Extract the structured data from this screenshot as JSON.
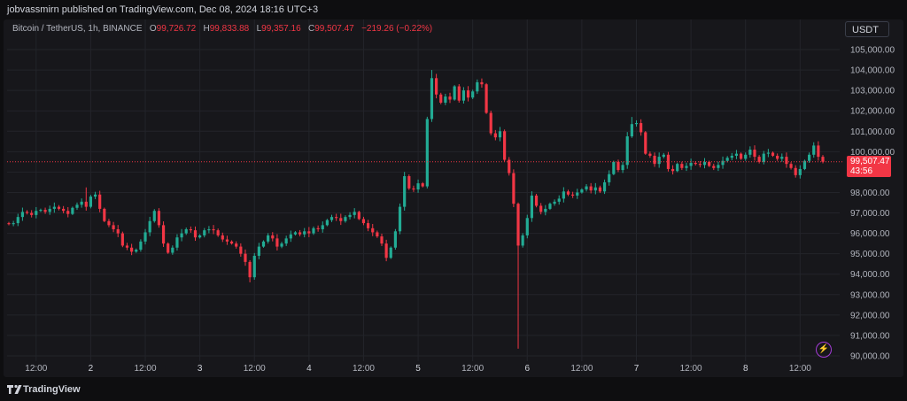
{
  "header": {
    "publisher_line": "jobvassmirn published on TradingView.com, Dec 08, 2024 18:16 UTC+3"
  },
  "legend": {
    "symbol": "Bitcoin / TetherUS, 1h, BINANCE",
    "open_label": "O",
    "open_value": "99,726.72",
    "high_label": "H",
    "high_value": "99,833.88",
    "low_label": "L",
    "low_value": "99,357.16",
    "close_label": "C",
    "close_value": "99,507.47",
    "change": "−219.26 (−0.22%)"
  },
  "currency": "USDT",
  "last_price": {
    "price": "99,507.47",
    "countdown": "43:56"
  },
  "footer": {
    "brand": "TradingView"
  },
  "colors": {
    "up": "#22ab94",
    "down": "#f23645",
    "background": "#17171b",
    "price_line": "#f23645"
  },
  "icons": {
    "alert": "lightning-bolt-icon",
    "logo": "tradingview-logo-icon"
  },
  "chart_data": {
    "type": "candlestick",
    "title": "Bitcoin / TetherUS, 1h, BINANCE",
    "interval": "1h",
    "y_axis": {
      "min": 90000,
      "max": 105000,
      "position": "right",
      "ticks": [
        "105,000.00",
        "104,000.00",
        "103,000.00",
        "102,000.00",
        "101,000.00",
        "100,000.00",
        "99,000.00",
        "98,000.00",
        "97,000.00",
        "96,000.00",
        "95,000.00",
        "94,000.00",
        "93,000.00",
        "92,000.00",
        "91,000.00",
        "90,000.00"
      ]
    },
    "x_axis": {
      "ticks": [
        {
          "label": "12:00",
          "bar": 6,
          "day": false
        },
        {
          "label": "2",
          "bar": 18,
          "day": true
        },
        {
          "label": "12:00",
          "bar": 30,
          "day": false
        },
        {
          "label": "3",
          "bar": 42,
          "day": true
        },
        {
          "label": "12:00",
          "bar": 54,
          "day": false
        },
        {
          "label": "4",
          "bar": 66,
          "day": true
        },
        {
          "label": "12:00",
          "bar": 78,
          "day": false
        },
        {
          "label": "5",
          "bar": 90,
          "day": true
        },
        {
          "label": "12:00",
          "bar": 102,
          "day": false
        },
        {
          "label": "6",
          "bar": 114,
          "day": true
        },
        {
          "label": "12:00",
          "bar": 126,
          "day": false
        },
        {
          "label": "7",
          "bar": 138,
          "day": true
        },
        {
          "label": "12:00",
          "bar": 150,
          "day": false
        },
        {
          "label": "8",
          "bar": 162,
          "day": true
        },
        {
          "label": "12:00",
          "bar": 174,
          "day": false
        }
      ]
    },
    "grid": true,
    "current_price": 99507.47,
    "closes": [
      96450,
      96500,
      96800,
      97050,
      97000,
      96900,
      97100,
      97150,
      97050,
      97200,
      97300,
      97200,
      97100,
      96950,
      97250,
      97400,
      97550,
      97300,
      97800,
      97900,
      97200,
      96600,
      96400,
      96200,
      96000,
      95400,
      95300,
      95100,
      95200,
      95600,
      96050,
      96600,
      97100,
      96400,
      95500,
      95050,
      95300,
      95800,
      96000,
      96200,
      96150,
      95800,
      95900,
      96150,
      96200,
      96150,
      95900,
      95700,
      95600,
      95500,
      95350,
      95000,
      94600,
      93850,
      94900,
      95350,
      95600,
      95900,
      95750,
      95350,
      95500,
      95750,
      95950,
      96050,
      95950,
      96100,
      96000,
      96250,
      96200,
      96400,
      96650,
      96800,
      96750,
      96600,
      96800,
      96900,
      97050,
      96700,
      96500,
      96250,
      96050,
      95850,
      95500,
      94800,
      95300,
      96100,
      97300,
      98800,
      98200,
      98150,
      98450,
      98300,
      101600,
      103600,
      102800,
      102400,
      102700,
      102550,
      103200,
      102500,
      103000,
      102650,
      102950,
      103400,
      103300,
      101900,
      100900,
      100700,
      101000,
      99600,
      98950,
      97450,
      95400,
      95900,
      96750,
      97850,
      97350,
      97050,
      97200,
      97450,
      97550,
      97700,
      98050,
      97900,
      97850,
      98000,
      98150,
      98300,
      98100,
      98250,
      98050,
      98500,
      98900,
      99500,
      99100,
      99350,
      100750,
      101350,
      101400,
      100950,
      99900,
      99800,
      99400,
      99750,
      99850,
      99150,
      99050,
      99400,
      99200,
      99300,
      99450,
      99400,
      99350,
      99500,
      99300,
      99200,
      99350,
      99550,
      99700,
      99800,
      99900,
      99650,
      99850,
      100100,
      99750,
      99500,
      99900,
      99950,
      99800,
      99650,
      99750,
      99400,
      99200,
      98850,
      99150,
      99550,
      99850,
      100300,
      99750,
      99507.47
    ],
    "open_first": 96500,
    "extremes": [
      {
        "bar": 17,
        "high": 98250
      },
      {
        "bar": 53,
        "low": 93600
      },
      {
        "bar": 93,
        "high": 104000
      },
      {
        "bar": 112,
        "low": 90350
      },
      {
        "bar": 137,
        "high": 101700
      }
    ]
  }
}
